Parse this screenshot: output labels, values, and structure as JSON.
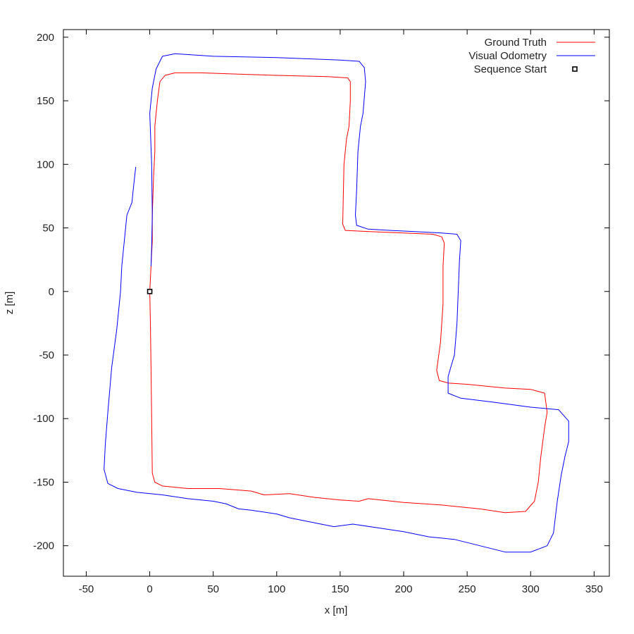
{
  "chart_data": {
    "type": "line",
    "title": "",
    "xlabel": "x [m]",
    "ylabel": "z [m]",
    "xlim": [
      -68,
      362
    ],
    "ylim": [
      -224,
      206
    ],
    "xticks": [
      -50,
      0,
      50,
      100,
      150,
      200,
      250,
      300,
      350
    ],
    "yticks": [
      -200,
      -150,
      -100,
      -50,
      0,
      50,
      100,
      150,
      200
    ],
    "grid": false,
    "legend_position": "top-right",
    "series": [
      {
        "name": "Ground Truth",
        "color": "#ff0000",
        "points": [
          [
            0,
            0
          ],
          [
            0.5,
            -25
          ],
          [
            1,
            -60
          ],
          [
            1.5,
            -100
          ],
          [
            2,
            -143
          ],
          [
            4,
            -150
          ],
          [
            10,
            -153
          ],
          [
            30,
            -155
          ],
          [
            55,
            -155
          ],
          [
            80,
            -157
          ],
          [
            90,
            -160
          ],
          [
            110,
            -159
          ],
          [
            130,
            -162
          ],
          [
            150,
            -164
          ],
          [
            165,
            -165
          ],
          [
            172,
            -163
          ],
          [
            200,
            -166
          ],
          [
            230,
            -168
          ],
          [
            260,
            -171
          ],
          [
            280,
            -174
          ],
          [
            296,
            -173
          ],
          [
            303,
            -165
          ],
          [
            306,
            -150
          ],
          [
            308,
            -130
          ],
          [
            311,
            -107
          ],
          [
            313,
            -95
          ],
          [
            311,
            -80
          ],
          [
            300,
            -77
          ],
          [
            280,
            -76
          ],
          [
            250,
            -73
          ],
          [
            235,
            -72
          ],
          [
            228,
            -70
          ],
          [
            226,
            -62
          ],
          [
            229,
            -40
          ],
          [
            231,
            -10
          ],
          [
            231,
            20
          ],
          [
            232,
            38
          ],
          [
            230,
            43
          ],
          [
            223,
            45
          ],
          [
            200,
            46
          ],
          [
            175,
            47
          ],
          [
            154,
            48
          ],
          [
            152,
            53
          ],
          [
            153,
            100
          ],
          [
            155,
            120
          ],
          [
            157,
            130
          ],
          [
            158,
            150
          ],
          [
            158,
            165
          ],
          [
            156,
            168
          ],
          [
            140,
            169
          ],
          [
            100,
            170
          ],
          [
            70,
            171
          ],
          [
            40,
            172
          ],
          [
            20,
            172
          ],
          [
            12,
            170
          ],
          [
            8,
            165
          ],
          [
            6,
            150
          ],
          [
            5,
            140
          ],
          [
            4,
            130
          ],
          [
            4,
            110
          ],
          [
            3,
            90
          ],
          [
            2,
            60
          ],
          [
            2,
            40
          ],
          [
            1,
            20
          ],
          [
            0,
            0
          ]
        ]
      },
      {
        "name": "Visual Odometry",
        "color": "#0000ff",
        "points": [
          [
            1,
            20
          ],
          [
            1.5,
            35
          ],
          [
            2,
            60
          ],
          [
            1.5,
            100
          ],
          [
            0,
            140
          ],
          [
            2,
            160
          ],
          [
            5,
            175
          ],
          [
            10,
            185
          ],
          [
            20,
            187
          ],
          [
            50,
            185
          ],
          [
            100,
            184
          ],
          [
            150,
            182
          ],
          [
            165,
            181
          ],
          [
            169,
            176
          ],
          [
            170,
            165
          ],
          [
            168,
            140
          ],
          [
            166,
            130
          ],
          [
            164,
            110
          ],
          [
            163,
            80
          ],
          [
            162,
            60
          ],
          [
            163,
            52
          ],
          [
            172,
            49
          ],
          [
            190,
            48
          ],
          [
            210,
            47
          ],
          [
            230,
            46
          ],
          [
            242,
            45
          ],
          [
            245,
            40
          ],
          [
            244,
            25
          ],
          [
            243,
            0
          ],
          [
            242,
            -25
          ],
          [
            240,
            -50
          ],
          [
            237,
            -60
          ],
          [
            235,
            -67
          ],
          [
            235,
            -80
          ],
          [
            245,
            -84
          ],
          [
            270,
            -87
          ],
          [
            300,
            -91
          ],
          [
            322,
            -93
          ],
          [
            330,
            -102
          ],
          [
            330,
            -118
          ],
          [
            327,
            -130
          ],
          [
            324,
            -145
          ],
          [
            321,
            -165
          ],
          [
            318,
            -190
          ],
          [
            313,
            -200
          ],
          [
            300,
            -205
          ],
          [
            280,
            -205
          ],
          [
            260,
            -200
          ],
          [
            240,
            -195
          ],
          [
            220,
            -193
          ],
          [
            200,
            -189
          ],
          [
            180,
            -186
          ],
          [
            160,
            -183
          ],
          [
            145,
            -185
          ],
          [
            120,
            -180
          ],
          [
            110,
            -178
          ],
          [
            100,
            -175
          ],
          [
            80,
            -172
          ],
          [
            70,
            -171
          ],
          [
            60,
            -167
          ],
          [
            50,
            -165
          ],
          [
            30,
            -163
          ],
          [
            10,
            -160
          ],
          [
            -10,
            -158
          ],
          [
            -25,
            -155
          ],
          [
            -33,
            -151
          ],
          [
            -36,
            -140
          ],
          [
            -35,
            -120
          ],
          [
            -33,
            -95
          ],
          [
            -30,
            -60
          ],
          [
            -26,
            -30
          ],
          [
            -23,
            0
          ],
          [
            -22,
            20
          ],
          [
            -20,
            40
          ],
          [
            -18,
            60
          ],
          [
            -14,
            70
          ],
          [
            -13,
            80
          ],
          [
            -11,
            98
          ]
        ]
      },
      {
        "name": "Sequence Start",
        "marker": "square",
        "color": "#000000",
        "points": [
          [
            0,
            0
          ]
        ]
      }
    ]
  }
}
